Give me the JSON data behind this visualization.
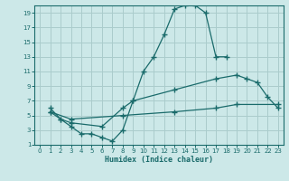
{
  "xlabel": "Humidex (Indice chaleur)",
  "bg_color": "#cce8e8",
  "grid_color": "#aacccc",
  "line_color": "#1a6b6b",
  "xlim": [
    -0.5,
    23.5
  ],
  "ylim": [
    1,
    20
  ],
  "xticks": [
    0,
    1,
    2,
    3,
    4,
    5,
    6,
    7,
    8,
    9,
    10,
    11,
    12,
    13,
    14,
    15,
    16,
    17,
    18,
    19,
    20,
    21,
    22,
    23
  ],
  "yticks": [
    1,
    3,
    5,
    7,
    9,
    11,
    13,
    15,
    17,
    19
  ],
  "line1_x": [
    1,
    2,
    3,
    4,
    5,
    6,
    7,
    8,
    9,
    10,
    11,
    12,
    13,
    14,
    15,
    16,
    17,
    18
  ],
  "line1_y": [
    6,
    4.5,
    3.5,
    2.5,
    2.5,
    2,
    1.5,
    3,
    7,
    11,
    13,
    16,
    19.5,
    20,
    20,
    19,
    13,
    13
  ],
  "line2_x": [
    1,
    2,
    3,
    6,
    8,
    9,
    13,
    17,
    19,
    20,
    21,
    22,
    23
  ],
  "line2_y": [
    5.5,
    4.5,
    4,
    3.5,
    6,
    7,
    8.5,
    10,
    10.5,
    10,
    9.5,
    7.5,
    6
  ],
  "line3_x": [
    1,
    3,
    8,
    13,
    17,
    19,
    23
  ],
  "line3_y": [
    5.5,
    4.5,
    5,
    5.5,
    6,
    6.5,
    6.5
  ]
}
